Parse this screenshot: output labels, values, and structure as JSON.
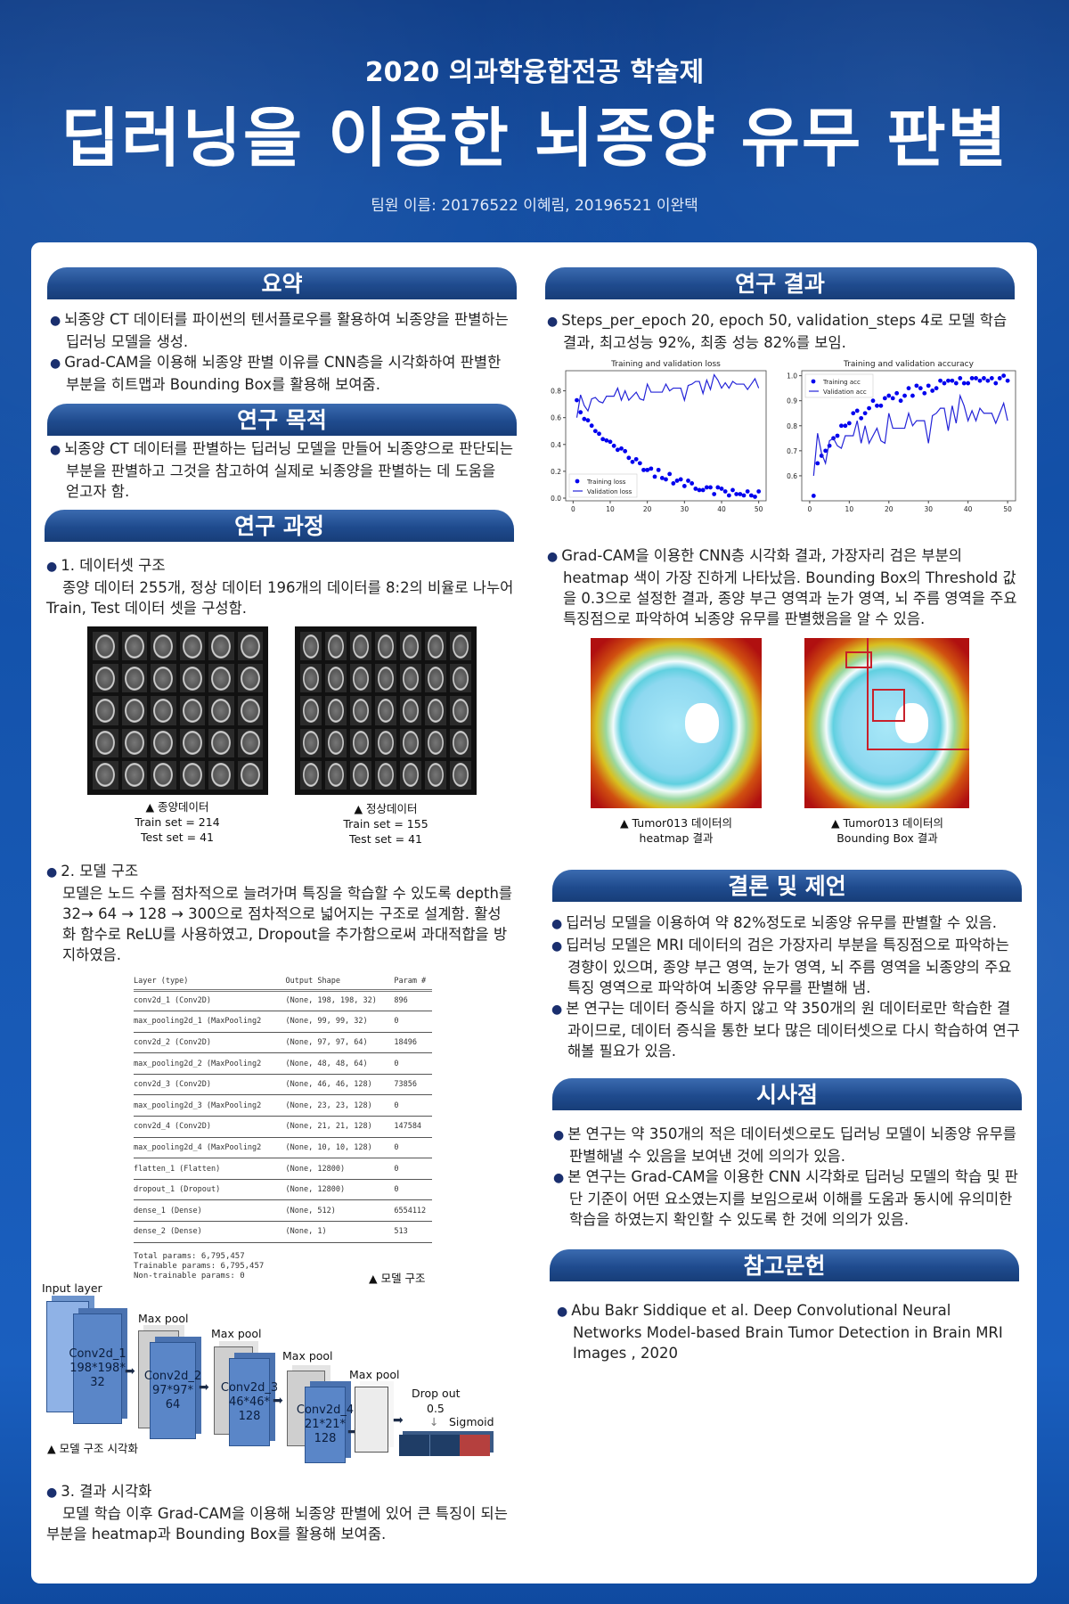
{
  "header": {
    "supertitle": "2020 의과학융합전공 학술제",
    "title": "딥러닝을 이용한 뇌종양 유무 판별",
    "team": "팀원 이름: 20176522 이혜림, 20196521 이완택"
  },
  "summary": {
    "heading": "요약",
    "bullets": [
      "뇌종양 CT 데이터를 파이썬의 텐서플로우를 활용하여 뇌종양을 판별하는 딥러닝 모델을 생성.",
      "Grad-CAM을 이용해 뇌종양 판별 이유를 CNN층을 시각화하여 판별한 부분을 히트맵과 Bounding Box를 활용해 보여줌."
    ]
  },
  "purpose": {
    "heading": "연구 목적",
    "bullets": [
      "뇌종양 CT 데이터를 판별하는 딥러닝 모델을 만들어 뇌종양으로 판단되는 부분을 판별하고 그것을 참고하여 실제로 뇌종양을 판별하는 데 도움을 얻고자 함."
    ]
  },
  "process": {
    "heading": "연구 과정",
    "dataset": {
      "title": "1. 데이터셋 구조",
      "body": "종양 데이터 255개, 정상 데이터 196개의 데이터를 8:2의 비율로 나누어 Train, Test 데이터 셋을 구성함.",
      "tumor_caption": [
        "▲ 종양데이터",
        "Train set = 214",
        "Test set = 41"
      ],
      "normal_caption": [
        "▲ 정상데이터",
        "Train set = 155",
        "Test set = 41"
      ]
    },
    "model": {
      "title": "2. 모델 구조",
      "body": "모델은 노드 수를 점차적으로 늘려가며 특징을 학습할 수 있도록 depth를 32→ 64 → 128 → 300으로 점차적으로 넓어지는 구조로 설계함. 활성화 함수로 ReLU를 사용하였고, Dropout을 추가함으로써 과대적합을 방지하였음.",
      "table": {
        "headers": [
          "Layer (type)",
          "Output Shape",
          "Param #"
        ],
        "rows": [
          [
            "conv2d_1 (Conv2D)",
            "(None, 198, 198, 32)",
            "896"
          ],
          [
            "max_pooling2d_1 (MaxPooling2",
            "(None, 99, 99, 32)",
            "0"
          ],
          [
            "conv2d_2 (Conv2D)",
            "(None, 97, 97, 64)",
            "18496"
          ],
          [
            "max_pooling2d_2 (MaxPooling2",
            "(None, 48, 48, 64)",
            "0"
          ],
          [
            "conv2d_3 (Conv2D)",
            "(None, 46, 46, 128)",
            "73856"
          ],
          [
            "max_pooling2d_3 (MaxPooling2",
            "(None, 23, 23, 128)",
            "0"
          ],
          [
            "conv2d_4 (Conv2D)",
            "(None, 21, 21, 128)",
            "147584"
          ],
          [
            "max_pooling2d_4 (MaxPooling2",
            "(None, 10, 10, 128)",
            "0"
          ],
          [
            "flatten_1 (Flatten)",
            "(None, 12800)",
            "0"
          ],
          [
            "dropout_1 (Dropout)",
            "(None, 12800)",
            "0"
          ],
          [
            "dense_1 (Dense)",
            "(None, 512)",
            "6554112"
          ],
          [
            "dense_2 (Dense)",
            "(None, 1)",
            "513"
          ]
        ],
        "total": "Total params: 6,795,457",
        "trainable": "Trainable params: 6,795,457",
        "nontrainable": "Non-trainable params: 0",
        "caption": "▲ 모델 구조"
      },
      "diagram": {
        "input_label": "Input layer",
        "conv1": [
          "Conv2d_1",
          "198*198*",
          "32"
        ],
        "conv2": [
          "Conv2d_2",
          "97*97*",
          "64"
        ],
        "conv3": [
          "Conv2d_3",
          "46*46*",
          "128"
        ],
        "conv4": [
          "Conv2d_4",
          "21*21*",
          "128"
        ],
        "maxpool": "Max pool",
        "dropout": "Drop out",
        "dropout_rate": "0.5",
        "sigmoid": "Sigmoid",
        "caption": "▲ 모델 구조 시각화"
      }
    },
    "visual": {
      "title": "3. 결과 시각화",
      "body": "모델 학습 이후 Grad-CAM을 이용해 뇌종양 판별에 있어 큰 특징이 되는 부분을 heatmap과 Bounding Box를 활용해 보여줌."
    }
  },
  "results": {
    "heading": "연구 결과",
    "bullet1": "Steps_per_epoch 20, epoch 50, validation_steps 4로 모델 학습 결과, 최고성능 92%, 최종 성능 82%를 보임.",
    "bullet2": "Grad-CAM을 이용한 CNN층 시각화 결과, 가장자리 검은 부분의 heatmap 색이 가장 진하게 나타났음. Bounding Box의 Threshold 값을 0.3으로 설정한 결과, 종양 부근 영역과 눈가 영역, 뇌 주름 영역을 주요 특징점으로 파악하여 뇌종양 유무를 판별했음을 알 수 있음.",
    "heatmap_caption": [
      "▲ Tumor013 데이터의",
      "heatmap 결과"
    ],
    "bbox_caption": [
      "▲ Tumor013 데이터의",
      "Bounding Box 결과"
    ]
  },
  "conclusion": {
    "heading": "결론 및 제언",
    "bullets": [
      "딥러닝 모델을 이용하여 약 82%정도로 뇌종양 유무를 판별할 수 있음.",
      "딥러닝 모델은 MRI 데이터의 검은 가장자리 부분을 특징점으로 파악하는 경향이 있으며, 종양 부근 영역, 눈가 영역, 뇌 주름 영역을 뇌종양의 주요 특징 영역으로 파악하여 뇌종양 유무를 판별해 냄.",
      "본 연구는 데이터 증식을 하지 않고 약 350개의 원 데이터로만 학습한 결과이므로, 데이터 증식을 통한 보다 많은 데이터셋으로 다시 학습하여 연구해볼 필요가 있음."
    ]
  },
  "implications": {
    "heading": "시사점",
    "bullets": [
      "본 연구는 약 350개의 적은 데이터셋으로도 딥러닝 모델이 뇌종양 유무를 판별해낼 수 있음을  보여낸 것에 의의가 있음.",
      "본 연구는 Grad-CAM을 이용한 CNN 시각화로 딥러닝 모델의 학습 및 판단 기준이 어떤 요소였는지를 보임으로써 이해를 도움과 동시에 유의미한 학습을 하였는지 확인할 수 있도록 한 것에 의의가 있음."
    ]
  },
  "references": {
    "heading": "참고문헌",
    "items": [
      "Abu Bakr Siddique et al. Deep Convolutional Neural Networks Model-based Brain Tumor Detection in Brain MRI Images , 2020"
    ]
  },
  "colors": {
    "accent": "#1f4b8e",
    "background": "#1656b0",
    "marker": "#0000ff"
  },
  "chart_data": [
    {
      "type": "scatter+line",
      "title": "Training and validation loss",
      "x": [
        1,
        2,
        3,
        4,
        5,
        6,
        7,
        8,
        9,
        10,
        11,
        12,
        13,
        14,
        15,
        16,
        17,
        18,
        19,
        20,
        21,
        22,
        23,
        24,
        25,
        26,
        27,
        28,
        29,
        30,
        31,
        32,
        33,
        34,
        35,
        36,
        37,
        38,
        39,
        40,
        41,
        42,
        43,
        44,
        45,
        46,
        47,
        48,
        49,
        50
      ],
      "series": [
        {
          "name": "Training loss",
          "style": "dots",
          "values": [
            0.73,
            0.64,
            0.59,
            0.58,
            0.54,
            0.5,
            0.48,
            0.44,
            0.43,
            0.42,
            0.39,
            0.36,
            0.37,
            0.35,
            0.3,
            0.27,
            0.29,
            0.26,
            0.21,
            0.21,
            0.22,
            0.16,
            0.21,
            0.15,
            0.14,
            0.18,
            0.11,
            0.13,
            0.14,
            0.09,
            0.13,
            0.11,
            0.07,
            0.06,
            0.06,
            0.08,
            0.08,
            0.03,
            0.08,
            0.07,
            0.05,
            0.02,
            0.06,
            0.03,
            0.03,
            0.02,
            0.05,
            0.02,
            0.01,
            0.05
          ]
        },
        {
          "name": "Validation loss",
          "style": "line",
          "values": [
            0.6,
            0.77,
            0.69,
            0.65,
            0.74,
            0.75,
            0.72,
            0.71,
            0.76,
            0.76,
            0.76,
            0.82,
            0.73,
            0.8,
            0.73,
            0.76,
            0.79,
            0.74,
            0.73,
            0.85,
            0.79,
            0.79,
            0.79,
            0.79,
            0.85,
            0.8,
            0.82,
            0.82,
            0.82,
            0.73,
            0.84,
            0.85,
            0.87,
            0.87,
            0.78,
            0.88,
            0.81,
            0.92,
            0.88,
            0.82,
            0.86,
            0.82,
            0.87,
            0.85,
            0.85,
            0.85,
            0.81,
            0.85,
            0.89,
            0.82
          ]
        }
      ],
      "xlim": [
        -2,
        52
      ],
      "ylim": [
        -0.02,
        0.95
      ],
      "xticks": [
        0,
        10,
        20,
        30,
        40,
        50
      ],
      "yticks": [
        0.0,
        0.2,
        0.4,
        0.6,
        0.8
      ],
      "legend": "bottom-left"
    },
    {
      "type": "scatter+line",
      "title": "Training and validation accuracy",
      "x": [
        1,
        2,
        3,
        4,
        5,
        6,
        7,
        8,
        9,
        10,
        11,
        12,
        13,
        14,
        15,
        16,
        17,
        18,
        19,
        20,
        21,
        22,
        23,
        24,
        25,
        26,
        27,
        28,
        29,
        30,
        31,
        32,
        33,
        34,
        35,
        36,
        37,
        38,
        39,
        40,
        41,
        42,
        43,
        44,
        45,
        46,
        47,
        48,
        49,
        50
      ],
      "series": [
        {
          "name": "Training acc",
          "style": "dots",
          "values": [
            0.52,
            0.65,
            0.68,
            0.7,
            0.72,
            0.75,
            0.76,
            0.8,
            0.8,
            0.81,
            0.85,
            0.86,
            0.83,
            0.85,
            0.87,
            0.9,
            0.88,
            0.88,
            0.91,
            0.92,
            0.91,
            0.93,
            0.9,
            0.92,
            0.95,
            0.92,
            0.96,
            0.95,
            0.93,
            0.96,
            0.94,
            0.95,
            0.98,
            0.97,
            0.98,
            0.98,
            0.97,
            0.99,
            0.97,
            0.97,
            0.99,
            0.99,
            0.98,
            0.99,
            0.98,
            0.99,
            0.97,
            0.99,
            1.0,
            0.98
          ]
        },
        {
          "name": "Validation acc",
          "style": "line",
          "values": [
            0.6,
            0.77,
            0.69,
            0.65,
            0.74,
            0.75,
            0.72,
            0.71,
            0.76,
            0.76,
            0.76,
            0.82,
            0.73,
            0.8,
            0.73,
            0.76,
            0.79,
            0.74,
            0.73,
            0.85,
            0.79,
            0.79,
            0.79,
            0.79,
            0.85,
            0.8,
            0.82,
            0.82,
            0.82,
            0.73,
            0.84,
            0.85,
            0.87,
            0.87,
            0.78,
            0.88,
            0.81,
            0.92,
            0.88,
            0.82,
            0.86,
            0.82,
            0.87,
            0.85,
            0.85,
            0.85,
            0.81,
            0.85,
            0.89,
            0.82
          ]
        }
      ],
      "xlim": [
        -2,
        52
      ],
      "ylim": [
        0.5,
        1.02
      ],
      "xticks": [
        0,
        10,
        20,
        30,
        40,
        50
      ],
      "yticks": [
        0.6,
        0.7,
        0.8,
        0.9,
        1.0
      ],
      "legend": "top-left"
    }
  ]
}
